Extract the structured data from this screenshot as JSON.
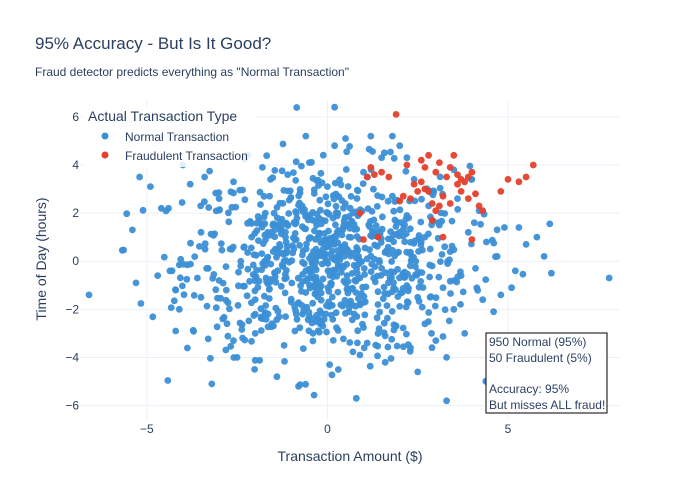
{
  "title": "95% Accuracy - But Is It Good?",
  "subtitle": "Fraud detector predicts everything as \"Normal Transaction\"",
  "chart_data": {
    "type": "scatter",
    "xlabel": "Transaction Amount ($)",
    "ylabel": "Time of Day (hours)",
    "xlim": [
      -6.85,
      8.1
    ],
    "ylim": [
      -6.6,
      6.7
    ],
    "x_ticks": [
      -5,
      0,
      5
    ],
    "y_ticks": [
      -6,
      -4,
      -2,
      0,
      2,
      4,
      6
    ],
    "grid": true,
    "legend": {
      "title": "Actual Transaction Type",
      "placement": "top-left",
      "entries": [
        "Normal Transaction",
        "Fraudulent Transaction"
      ]
    },
    "colors": {
      "normal": "#3b8fd6",
      "fraud": "#e5402c",
      "text": "#2a3f5f"
    },
    "series": [
      {
        "name": "Normal Transaction",
        "count": 950,
        "points": [
          [
            -6.6,
            -1.4
          ],
          [
            -5.4,
            1.3
          ],
          [
            -5.3,
            -0.9
          ],
          [
            -5.2,
            3.5
          ],
          [
            -4.9,
            3.1
          ],
          [
            -4.6,
            2.2
          ],
          [
            -4.4,
            2.2
          ],
          [
            -4.3,
            -0.4
          ],
          [
            -4.2,
            -1.2
          ],
          [
            -4.2,
            -2.9
          ],
          [
            -4.1,
            -2.0
          ],
          [
            -4.0,
            4.0
          ],
          [
            -3.8,
            3.2
          ],
          [
            -3.5,
            -1.5
          ],
          [
            -3.4,
            3.5
          ],
          [
            -3.3,
            -0.3
          ],
          [
            -3.2,
            -5.1
          ],
          [
            -3.0,
            2.6
          ],
          [
            -2.9,
            -2.4
          ],
          [
            -2.8,
            -1.2
          ],
          [
            -2.6,
            3.3
          ],
          [
            -2.6,
            -3.3
          ],
          [
            -2.5,
            -4.0
          ],
          [
            -2.4,
            -0.2
          ],
          [
            -2.2,
            4.4
          ],
          [
            -2.1,
            1.0
          ],
          [
            -2.0,
            -2.2
          ],
          [
            -1.8,
            3.9
          ],
          [
            -1.7,
            -0.7
          ],
          [
            -1.6,
            2.7
          ],
          [
            -1.5,
            0.4
          ],
          [
            -1.4,
            -4.8
          ],
          [
            -1.3,
            1.6
          ],
          [
            -1.2,
            -3.5
          ],
          [
            -1.1,
            3.6
          ],
          [
            -1.0,
            -1.7
          ],
          [
            -0.9,
            0.9
          ],
          [
            -0.8,
            -5.2
          ],
          [
            -0.7,
            2.3
          ],
          [
            -0.6,
            -0.4
          ],
          [
            -0.5,
            4.1
          ],
          [
            -0.4,
            -3.0
          ],
          [
            -0.3,
            1.5
          ],
          [
            -0.2,
            -2.6
          ],
          [
            -0.1,
            0.2
          ],
          [
            0.0,
            3.1
          ],
          [
            0.1,
            -1.0
          ],
          [
            0.2,
            4.8
          ],
          [
            0.3,
            -4.5
          ],
          [
            0.4,
            0.6
          ],
          [
            0.5,
            5.1
          ],
          [
            0.6,
            -2.1
          ],
          [
            0.7,
            2.0
          ],
          [
            0.8,
            -5.7
          ],
          [
            0.9,
            -0.7
          ],
          [
            1.0,
            3.7
          ],
          [
            1.1,
            -3.4
          ],
          [
            1.2,
            5.2
          ],
          [
            1.3,
            1.2
          ],
          [
            1.4,
            -1.8
          ],
          [
            1.5,
            4.3
          ],
          [
            1.6,
            -4.2
          ],
          [
            1.7,
            0.3
          ],
          [
            1.8,
            2.7
          ],
          [
            1.9,
            -2.7
          ],
          [
            2.0,
            4.8
          ],
          [
            2.1,
            -0.5
          ],
          [
            2.2,
            1.9
          ],
          [
            2.3,
            -3.6
          ],
          [
            2.4,
            3.4
          ],
          [
            2.5,
            -1.5
          ],
          [
            2.6,
            0.8
          ],
          [
            2.7,
            -2.6
          ],
          [
            2.8,
            2.3
          ],
          [
            2.9,
            -0.2
          ],
          [
            3.0,
            -3.3
          ],
          [
            3.1,
            1.5
          ],
          [
            3.2,
            -1.1
          ],
          [
            3.3,
            -5.8
          ],
          [
            3.4,
            0.4
          ],
          [
            3.5,
            -2.0
          ],
          [
            3.6,
            2.6
          ],
          [
            3.7,
            -0.6
          ],
          [
            3.8,
            -3.0
          ],
          [
            3.9,
            1.2
          ],
          [
            4.1,
            -0.3
          ],
          [
            4.2,
            2.1
          ],
          [
            4.3,
            -1.6
          ],
          [
            4.4,
            0.8
          ],
          [
            4.6,
            -2.1
          ],
          [
            4.7,
            0.2
          ],
          [
            4.8,
            -1.4
          ],
          [
            4.9,
            1.4
          ],
          [
            5.1,
            -1.1
          ],
          [
            5.3,
            1.4
          ],
          [
            5.5,
            0.7
          ],
          [
            5.2,
            -0.4
          ],
          [
            6.2,
            -0.5
          ],
          [
            7.8,
            -0.7
          ],
          [
            0.2,
            6.4
          ],
          [
            -0.6,
            5.2
          ],
          [
            1.8,
            5.2
          ],
          [
            -3.0,
            -0.8
          ],
          [
            -1.9,
            1.7
          ],
          [
            -0.6,
            -1.3
          ],
          [
            1.1,
            0.1
          ],
          [
            2.0,
            1.2
          ],
          [
            -1.2,
            0.0
          ],
          [
            -0.3,
            -0.8
          ],
          [
            0.6,
            1.0
          ],
          [
            1.5,
            -0.3
          ],
          [
            -2.3,
            0.6
          ],
          [
            2.7,
            1.0
          ],
          [
            -0.9,
            -2.9
          ],
          [
            0.9,
            -3.9
          ],
          [
            -2.0,
            -3.0
          ],
          [
            3.3,
            -4.0
          ],
          [
            2.5,
            -4.6
          ],
          [
            -3.6,
            -0.7
          ],
          [
            -3.5,
            1.2
          ],
          [
            -4.7,
            -0.6
          ],
          [
            5.8,
            1.0
          ],
          [
            6.0,
            0.2
          ],
          [
            4.0,
            3.4
          ],
          [
            3.5,
            3.8
          ],
          [
            2.2,
            4.3
          ]
        ]
      },
      {
        "name": "Fraudulent Transaction",
        "count": 50,
        "points": [
          [
            1.9,
            6.1
          ],
          [
            2.2,
            4.0
          ],
          [
            2.6,
            4.2
          ],
          [
            2.7,
            3.9
          ],
          [
            2.8,
            4.4
          ],
          [
            3.0,
            3.7
          ],
          [
            3.1,
            4.1
          ],
          [
            3.3,
            3.5
          ],
          [
            3.4,
            3.9
          ],
          [
            3.5,
            4.4
          ],
          [
            3.6,
            3.6
          ],
          [
            3.7,
            3.4
          ],
          [
            3.8,
            3.3
          ],
          [
            3.9,
            3.5
          ],
          [
            4.1,
            2.8
          ],
          [
            4.2,
            2.3
          ],
          [
            4.3,
            2.1
          ],
          [
            3.2,
            2.7
          ],
          [
            3.0,
            2.1
          ],
          [
            2.9,
            2.4
          ],
          [
            2.5,
            2.9
          ],
          [
            2.3,
            2.6
          ],
          [
            2.1,
            2.7
          ],
          [
            2.0,
            2.5
          ],
          [
            1.7,
            3.5
          ],
          [
            1.5,
            3.7
          ],
          [
            1.3,
            3.6
          ],
          [
            1.2,
            3.9
          ],
          [
            1.1,
            3.5
          ],
          [
            2.4,
            3.2
          ],
          [
            2.6,
            3.3
          ],
          [
            2.8,
            2.9
          ],
          [
            3.1,
            2.3
          ],
          [
            3.4,
            2.4
          ],
          [
            3.6,
            3.2
          ],
          [
            3.7,
            2.9
          ],
          [
            4.0,
            3.7
          ],
          [
            4.8,
            2.9
          ],
          [
            5.0,
            3.4
          ],
          [
            5.3,
            3.3
          ],
          [
            5.5,
            3.5
          ],
          [
            5.7,
            4.0
          ],
          [
            1.4,
            1.0
          ],
          [
            1.0,
            0.9
          ],
          [
            0.9,
            2.0
          ],
          [
            2.9,
            1.7
          ],
          [
            3.2,
            1.0
          ],
          [
            4.0,
            0.9
          ],
          [
            2.7,
            3.0
          ],
          [
            3.9,
            2.6
          ]
        ]
      }
    ],
    "annotation": {
      "lines": [
        "950 Normal (95%)",
        "50 Fraudulent (5%)",
        "",
        "Accuracy: 95%",
        "But misses ALL fraud!"
      ]
    }
  }
}
